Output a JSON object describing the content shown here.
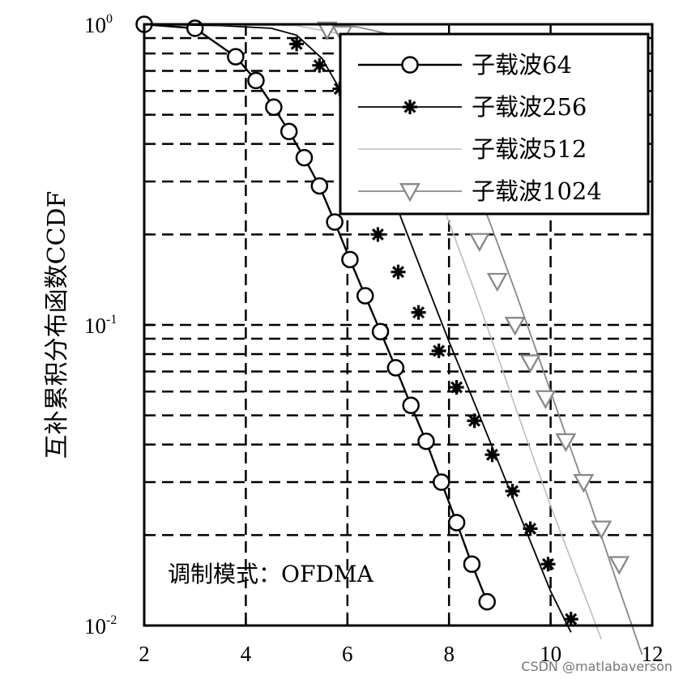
{
  "chart_data": {
    "type": "line",
    "title": "",
    "xlabel": "",
    "ylabel": "互补累积分布函数CCDF",
    "xlim": [
      2,
      12
    ],
    "ylim": [
      0.01,
      1
    ],
    "yscale": "log",
    "xticks": [
      "2",
      "4",
      "6",
      "8",
      "10",
      "12"
    ],
    "yticks": [
      {
        "base": "10",
        "exp": "0"
      },
      {
        "base": "10",
        "exp": "-1"
      },
      {
        "base": "10",
        "exp": "-2"
      }
    ],
    "grid": true,
    "legend_position": "top-right",
    "annotation": "调制模式：OFDMA",
    "series": [
      {
        "name": "子载波64",
        "marker": "circle",
        "color": "#000000",
        "x": [
          2.0,
          3.0,
          3.8,
          4.2,
          4.55,
          4.85,
          5.15,
          5.45,
          5.75,
          6.05,
          6.35,
          6.65,
          6.95,
          7.25,
          7.55,
          7.85,
          8.15,
          8.45,
          8.75
        ],
        "y": [
          1.0,
          0.97,
          0.78,
          0.65,
          0.53,
          0.44,
          0.36,
          0.29,
          0.22,
          0.165,
          0.125,
          0.095,
          0.072,
          0.054,
          0.041,
          0.03,
          0.022,
          0.016,
          0.012
        ]
      },
      {
        "name": "子载波256",
        "marker": "star",
        "color": "#000000",
        "x": [
          2.0,
          3.5,
          4.5,
          5.0,
          5.5,
          6.0,
          6.5,
          7.0,
          7.5,
          8.0,
          8.5,
          9.0,
          9.5,
          10.0,
          10.4
        ],
        "y": [
          1.0,
          0.99,
          0.97,
          0.92,
          0.77,
          0.55,
          0.37,
          0.24,
          0.145,
          0.088,
          0.055,
          0.034,
          0.021,
          0.013,
          0.0095
        ],
        "marker_x": [
          5.0,
          5.45,
          5.85,
          6.6,
          7.0,
          7.4,
          7.8,
          8.15,
          8.5,
          8.85,
          9.25,
          9.6,
          9.95,
          10.4
        ],
        "marker_y": [
          0.86,
          0.73,
          0.61,
          0.2,
          0.15,
          0.11,
          0.082,
          0.062,
          0.048,
          0.037,
          0.028,
          0.021,
          0.016,
          0.0105
        ]
      },
      {
        "name": "子载波512",
        "marker": "point",
        "color": "#bdbdbd",
        "x": [
          2.0,
          5.0,
          6.0,
          6.5,
          7.0,
          7.5,
          8.0,
          8.5,
          9.0,
          9.5,
          10.0,
          10.5,
          11.0
        ],
        "y": [
          1.0,
          0.99,
          0.92,
          0.78,
          0.55,
          0.36,
          0.22,
          0.13,
          0.075,
          0.043,
          0.025,
          0.015,
          0.009
        ]
      },
      {
        "name": "子载波1024",
        "marker": "triangle-down",
        "color": "#888888",
        "x": [
          2.0,
          5.5,
          6.2,
          6.8,
          7.3,
          7.8,
          8.3,
          8.8,
          9.3,
          9.8,
          10.3,
          10.8,
          11.3,
          11.8
        ],
        "y": [
          1.0,
          1.0,
          0.98,
          0.93,
          0.78,
          0.56,
          0.36,
          0.22,
          0.13,
          0.075,
          0.043,
          0.025,
          0.014,
          0.008
        ],
        "marker_x": [
          5.6,
          5.9,
          8.6,
          8.95,
          9.3,
          9.6,
          9.9,
          10.3,
          10.65,
          11.0,
          11.35
        ],
        "marker_y": [
          0.96,
          0.93,
          0.19,
          0.14,
          0.1,
          0.075,
          0.057,
          0.041,
          0.03,
          0.021,
          0.016
        ]
      }
    ]
  },
  "watermark": "CSDN @matlabaverson"
}
